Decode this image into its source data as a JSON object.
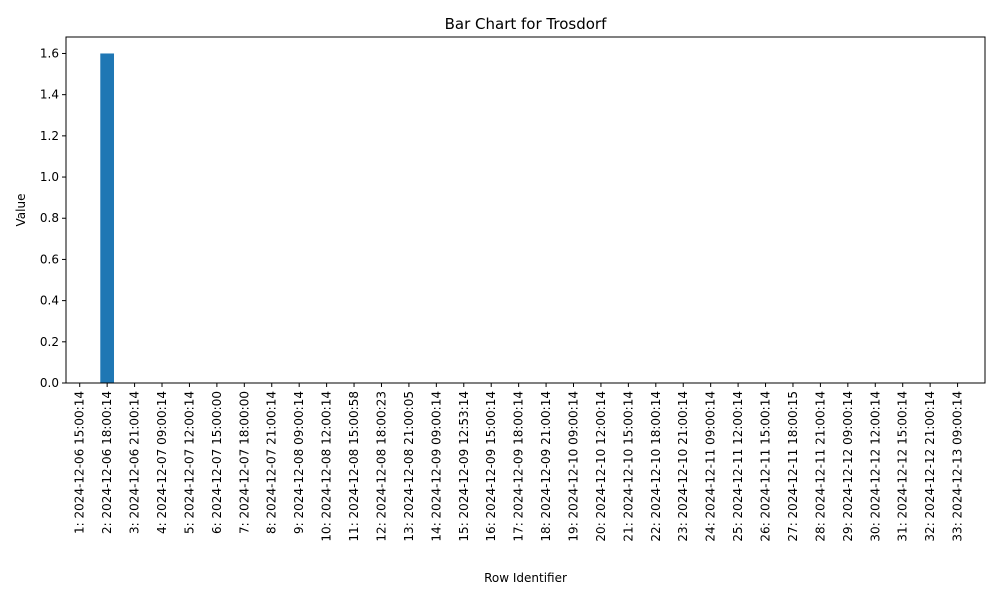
{
  "chart_data": {
    "type": "bar",
    "title": "Bar Chart for Trosdorf",
    "xlabel": "Row Identifier",
    "ylabel": "Value",
    "ylim": [
      0,
      1.68
    ],
    "yticks": [
      0.0,
      0.2,
      0.4,
      0.6,
      0.8,
      1.0,
      1.2,
      1.4,
      1.6
    ],
    "bar_color": "#1f77b4",
    "grid": false,
    "categories": [
      "1: 2024-12-06 15:00:14",
      "2: 2024-12-06 18:00:14",
      "3: 2024-12-06 21:00:14",
      "4: 2024-12-07 09:00:14",
      "5: 2024-12-07 12:00:14",
      "6: 2024-12-07 15:00:00",
      "7: 2024-12-07 18:00:00",
      "8: 2024-12-07 21:00:14",
      "9: 2024-12-08 09:00:14",
      "10: 2024-12-08 12:00:14",
      "11: 2024-12-08 15:00:58",
      "12: 2024-12-08 18:00:23",
      "13: 2024-12-08 21:00:05",
      "14: 2024-12-09 09:00:14",
      "15: 2024-12-09 12:53:14",
      "16: 2024-12-09 15:00:14",
      "17: 2024-12-09 18:00:14",
      "18: 2024-12-09 21:00:14",
      "19: 2024-12-10 09:00:14",
      "20: 2024-12-10 12:00:14",
      "21: 2024-12-10 15:00:14",
      "22: 2024-12-10 18:00:14",
      "23: 2024-12-10 21:00:14",
      "24: 2024-12-11 09:00:14",
      "25: 2024-12-11 12:00:14",
      "26: 2024-12-11 15:00:14",
      "27: 2024-12-11 18:00:15",
      "28: 2024-12-11 21:00:14",
      "29: 2024-12-12 09:00:14",
      "30: 2024-12-12 12:00:14",
      "31: 2024-12-12 15:00:14",
      "32: 2024-12-12 21:00:14",
      "33: 2024-12-13 09:00:14"
    ],
    "values": [
      0,
      1.6,
      0,
      0,
      0,
      0,
      0,
      0,
      0,
      0,
      0,
      0,
      0,
      0,
      0,
      0,
      0,
      0,
      0,
      0,
      0,
      0,
      0,
      0,
      0,
      0,
      0,
      0,
      0,
      0,
      0,
      0,
      0
    ]
  }
}
